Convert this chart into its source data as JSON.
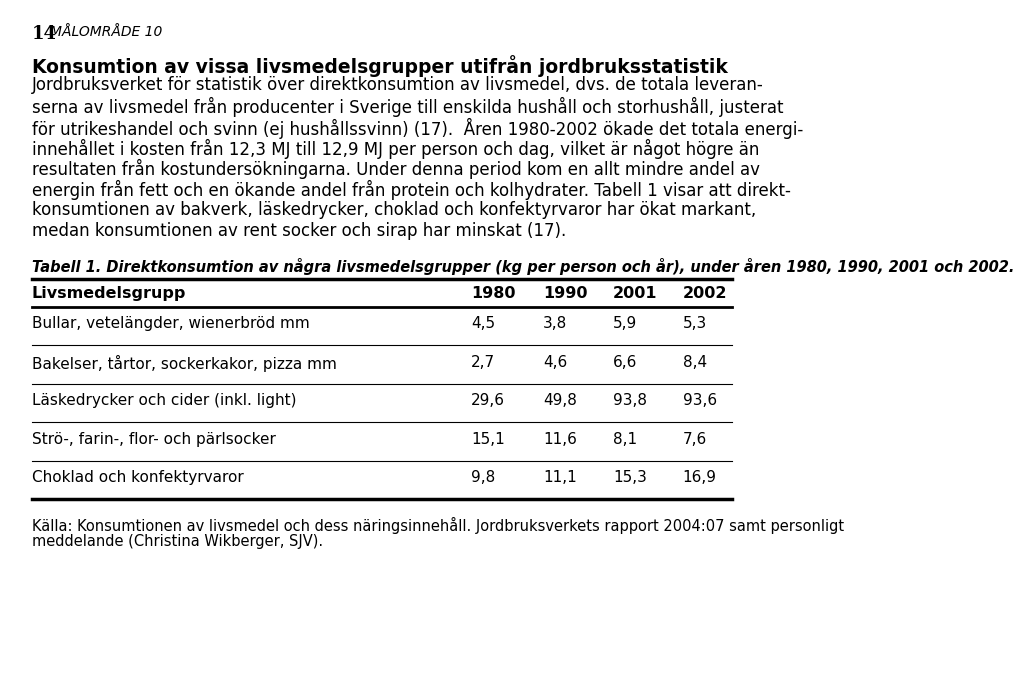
{
  "page_number": "14",
  "page_header": "MÅLOMRÅDE 10",
  "section_title": "Konsumtion av vissa livsmedelsgrupper utifrån jordbruksstatistik",
  "body_text": [
    "Jordbruksverket för statistik över direktkonsumtion av livsmedel, dvs. de totala leveran-",
    "serna av livsmedel från producenter i Sverige till enskilda hushåll och storhushåll, justerat",
    "för utrikeshandel och svinn (ej hushållssvinn) (17).  Åren 1980-2002 ökade det totala energi-",
    "innehållet i kosten från 12,3 MJ till 12,9 MJ per person och dag, vilket är något högre än",
    "resultaten från kostundersökningarna. Under denna period kom en allt mindre andel av",
    "energin från fett och en ökande andel från protein och kolhydrater. Tabell 1 visar att direkt-",
    "konsumtionen av bakverk, läskedrycker, choklad och konfektyrvaror har ökat markant,",
    "medan konsumtionen av rent socker och sirap har minskat (17)."
  ],
  "table_caption": "Tabell 1. Direktkonsumtion av några livsmedelsgrupper (kg per person och år), under åren 1980, 1990, 2001 och 2002.",
  "table_headers": [
    "Livsmedelsgrupp",
    "1980",
    "1990",
    "2001",
    "2002"
  ],
  "table_rows": [
    [
      "Bullar, vetelängder, wienerbröd mm",
      "4,5",
      "3,8",
      "5,9",
      "5,3"
    ],
    [
      "Bakelser, tårtor, sockerkakor, pizza mm",
      "2,7",
      "4,6",
      "6,6",
      "8,4"
    ],
    [
      "Läskedrycker och cider (inkl. light)",
      "29,6",
      "49,8",
      "93,8",
      "93,6"
    ],
    [
      "Strö-, farin-, flor- och pärlsocker",
      "15,1",
      "11,6",
      "8,1",
      "7,6"
    ],
    [
      "Choklad och konfektyrvaror",
      "9,8",
      "11,1",
      "15,3",
      "16,9"
    ]
  ],
  "footer_text": [
    "Källa: Konsumtionen av livsmedel och dess näringsinnehåll. Jordbruksverkets rapport 2004:07 samt personligt",
    "meddelande (Christina Wikberger, SJV)."
  ],
  "bg_color": "#ffffff",
  "text_color": "#000000"
}
